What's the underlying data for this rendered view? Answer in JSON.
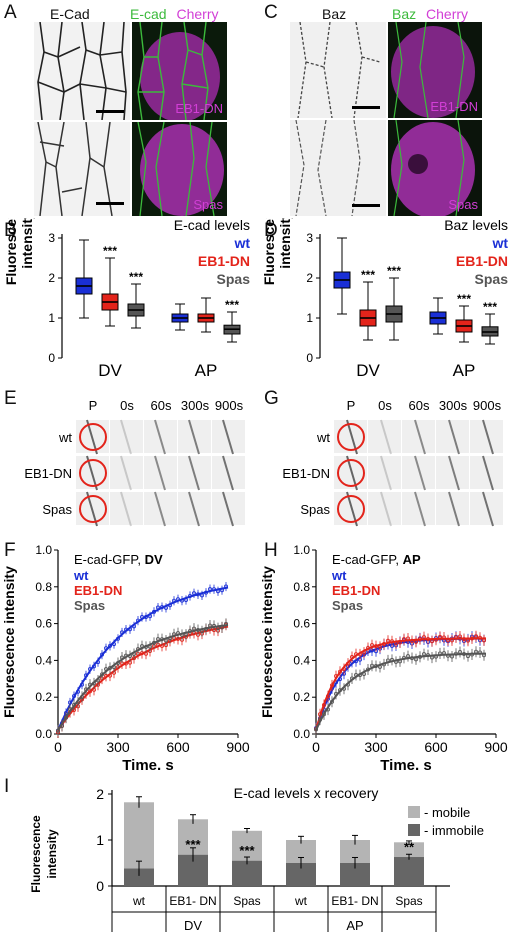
{
  "colors": {
    "wt": "#1a2fd6",
    "eb1": "#e3241b",
    "spas": "#555555",
    "green": "#3cba3c",
    "magenta": "#d23fd6",
    "light_bar": "#b4b4b4",
    "dark_bar": "#666666"
  },
  "panels": {
    "A": {
      "label": "A",
      "title_gray": "E-Cad",
      "title_green": "E-cad",
      "title_magenta": "Cherry",
      "tag_top": "EB1-DN",
      "tag_bottom": "Spas"
    },
    "C": {
      "label": "C",
      "title_gray": "Baz",
      "title_green": "Baz",
      "title_magenta": "Cherry",
      "tag_top": "EB1-DN",
      "tag_bottom": "Spas"
    },
    "E": {
      "label": "E",
      "rows": [
        "wt",
        "EB1-DN",
        "Spas"
      ],
      "cols": [
        "P",
        "0s",
        "60s",
        "300s",
        "900s"
      ]
    },
    "G": {
      "label": "G",
      "rows": [
        "wt",
        "EB1-DN",
        "Spas"
      ],
      "cols": [
        "P",
        "0s",
        "60s",
        "300s",
        "900s"
      ]
    }
  },
  "chart_data": [
    {
      "panel": "B",
      "type": "box",
      "title": "E-cad levels",
      "ylabel": "Fluorescence intensity",
      "ylim": [
        0,
        3
      ],
      "yticks": [
        "0",
        "1",
        "2",
        "3"
      ],
      "groups": [
        "DV",
        "AP"
      ],
      "series": [
        {
          "name": "wt",
          "color": "#1a2fd6",
          "boxes": [
            {
              "min": 1.0,
              "q1": 1.6,
              "median": 1.8,
              "q3": 2.0,
              "max": 2.95,
              "sig": ""
            },
            {
              "min": 0.7,
              "q1": 0.9,
              "median": 1.0,
              "q3": 1.1,
              "max": 1.35,
              "sig": ""
            }
          ]
        },
        {
          "name": "EB1-DN",
          "color": "#e3241b",
          "boxes": [
            {
              "min": 0.8,
              "q1": 1.2,
              "median": 1.4,
              "q3": 1.6,
              "max": 2.5,
              "sig": "***"
            },
            {
              "min": 0.65,
              "q1": 0.9,
              "median": 1.0,
              "q3": 1.1,
              "max": 1.5,
              "sig": ""
            }
          ]
        },
        {
          "name": "Spas",
          "color": "#555555",
          "boxes": [
            {
              "min": 0.75,
              "q1": 1.05,
              "median": 1.2,
              "q3": 1.35,
              "max": 1.85,
              "sig": "***"
            },
            {
              "min": 0.4,
              "q1": 0.6,
              "median": 0.72,
              "q3": 0.82,
              "max": 1.15,
              "sig": "***"
            }
          ]
        }
      ]
    },
    {
      "panel": "D",
      "type": "box",
      "title": "Baz levels",
      "ylabel": "Fluorescence intensity",
      "ylim": [
        0,
        3
      ],
      "yticks": [
        "0",
        "1",
        "2",
        "3"
      ],
      "groups": [
        "DV",
        "AP"
      ],
      "series": [
        {
          "name": "wt",
          "color": "#1a2fd6",
          "boxes": [
            {
              "min": 1.1,
              "q1": 1.75,
              "median": 1.95,
              "q3": 2.15,
              "max": 3.0,
              "sig": ""
            },
            {
              "min": 0.6,
              "q1": 0.85,
              "median": 1.0,
              "q3": 1.15,
              "max": 1.5,
              "sig": ""
            }
          ]
        },
        {
          "name": "EB1-DN",
          "color": "#e3241b",
          "boxes": [
            {
              "min": 0.45,
              "q1": 0.8,
              "median": 1.0,
              "q3": 1.2,
              "max": 1.9,
              "sig": "***"
            },
            {
              "min": 0.4,
              "q1": 0.65,
              "median": 0.8,
              "q3": 0.95,
              "max": 1.3,
              "sig": "***"
            }
          ]
        },
        {
          "name": "Spas",
          "color": "#555555",
          "boxes": [
            {
              "min": 0.45,
              "q1": 0.9,
              "median": 1.1,
              "q3": 1.3,
              "max": 2.0,
              "sig": "***"
            },
            {
              "min": 0.35,
              "q1": 0.55,
              "median": 0.65,
              "q3": 0.78,
              "max": 1.1,
              "sig": "***"
            }
          ]
        }
      ]
    },
    {
      "panel": "F",
      "type": "scatter",
      "legend_title": "E-cad-GFP,",
      "legend_title_bold": "DV",
      "xlabel": "Time, s",
      "ylabel": "Fluorescence intensity",
      "xlim": [
        0,
        900
      ],
      "ylim": [
        0,
        1.0
      ],
      "xticks": [
        "0",
        "300",
        "600",
        "900"
      ],
      "yticks": [
        "0.0",
        "0.2",
        "0.4",
        "0.6",
        "0.8",
        "1.0"
      ],
      "series": [
        {
          "name": "wt",
          "color": "#1a2fd6",
          "plateau": 0.84,
          "tau": 330,
          "err": 0.025
        },
        {
          "name": "EB1-DN",
          "color": "#e3241b",
          "plateau": 0.64,
          "tau": 400,
          "err": 0.03
        },
        {
          "name": "Spas",
          "color": "#555555",
          "plateau": 0.62,
          "tau": 330,
          "err": 0.03
        }
      ]
    },
    {
      "panel": "H",
      "type": "scatter",
      "legend_title": "E-cad-GFP,",
      "legend_title_bold": "AP",
      "xlabel": "Time, s",
      "ylabel": "Fluorescence intensity",
      "xlim": [
        0,
        900
      ],
      "ylim": [
        0,
        1.0
      ],
      "xticks": [
        "0",
        "300",
        "600",
        "900"
      ],
      "yticks": [
        "0.0",
        "0.2",
        "0.4",
        "0.6",
        "0.8",
        "1.0"
      ],
      "series": [
        {
          "name": "wt",
          "color": "#1a2fd6",
          "plateau": 0.5,
          "tau": 140,
          "err": 0.03
        },
        {
          "name": "EB1-DN",
          "color": "#e3241b",
          "plateau": 0.5,
          "tau": 120,
          "err": 0.03
        },
        {
          "name": "Spas",
          "color": "#555555",
          "plateau": 0.42,
          "tau": 170,
          "err": 0.03
        }
      ]
    },
    {
      "panel": "I",
      "type": "bar",
      "title": "E-cad levels x recovery",
      "ylabel": "Fluorescence intensity",
      "ylim": [
        0,
        2
      ],
      "yticks": [
        "0",
        "1",
        "2"
      ],
      "legend": [
        "- mobile",
        "- immobile"
      ],
      "categories": [
        "wt",
        "EB1- DN",
        "Spas",
        "wt",
        "EB1- DN",
        "Spas"
      ],
      "groups": [
        "DV",
        "AP"
      ],
      "total": [
        1.82,
        1.45,
        1.2,
        1.0,
        1.0,
        0.95
      ],
      "immobile": [
        0.38,
        0.68,
        0.55,
        0.5,
        0.5,
        0.63
      ],
      "total_err": [
        0.12,
        0.1,
        0.05,
        0.08,
        0.1,
        0.03
      ],
      "immobile_err": [
        0.16,
        0.15,
        0.08,
        0.12,
        0.12,
        0.06
      ],
      "sig": [
        "",
        "***",
        "***",
        "",
        "",
        "**"
      ]
    }
  ]
}
